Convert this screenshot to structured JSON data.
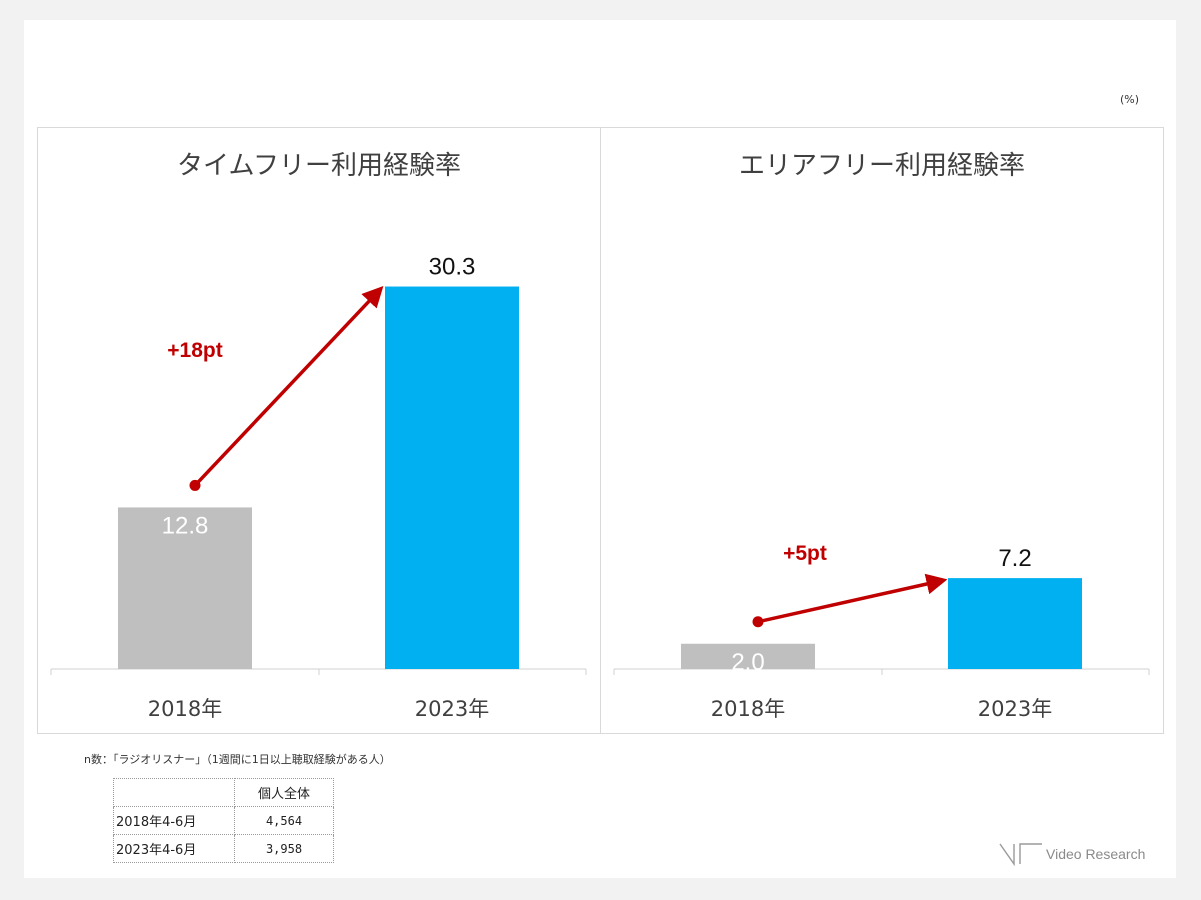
{
  "unit_label": "(%)",
  "note": "n数：「ラジオリスナー」（1週間に1日以上聴取経験がある人）",
  "table": {
    "header": [
      "",
      "個人全体"
    ],
    "rows": [
      {
        "label": "2018年4-6月",
        "value": "4,564"
      },
      {
        "label": "2023年4-6月",
        "value": "3,958"
      }
    ]
  },
  "logo_text": "Video Research",
  "colors": {
    "bar_2018": "#bfbfbf",
    "bar_2023": "#00b0f0",
    "arrow": "#c00000"
  },
  "chart_data": [
    {
      "type": "bar",
      "title": "タイムフリー利用経験率",
      "categories": [
        "2018年",
        "2023年"
      ],
      "values": [
        12.8,
        30.3
      ],
      "value_labels": [
        "12.8",
        "30.3"
      ],
      "delta_label": "+18pt",
      "ylim": [
        0,
        35
      ]
    },
    {
      "type": "bar",
      "title": "エリアフリー利用経験率",
      "categories": [
        "2018年",
        "2023年"
      ],
      "values": [
        2.0,
        7.2
      ],
      "value_labels": [
        "2.0",
        "7.2"
      ],
      "delta_label": "+5pt",
      "ylim": [
        0,
        35
      ]
    }
  ]
}
